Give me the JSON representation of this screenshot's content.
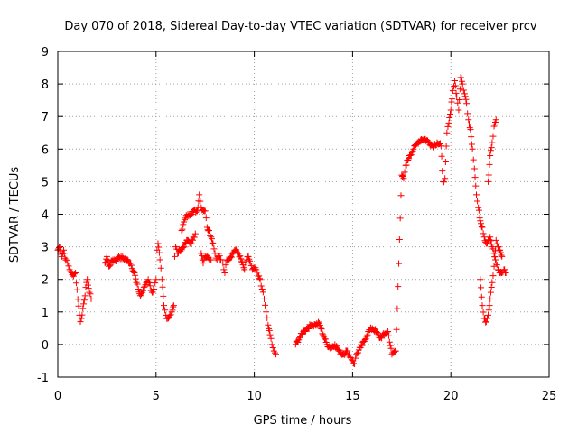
{
  "chart_data": {
    "type": "scatter",
    "title": "Day 070 of 2018, Sidereal Day-to-day VTEC variation (SDTVAR) for receiver prcv",
    "xlabel": "GPS time / hours",
    "ylabel": "SDTVAR / TECUs",
    "xlim": [
      0,
      25
    ],
    "ylim": [
      -1,
      9
    ],
    "xticks": [
      0,
      5,
      10,
      15,
      20,
      25
    ],
    "yticks": [
      -1,
      0,
      1,
      2,
      3,
      4,
      5,
      6,
      7,
      8,
      9
    ],
    "grid": true,
    "marker": "+",
    "color": "#ff0000",
    "series": [
      {
        "name": "SDTVAR",
        "keypoints": [
          [
            0.0,
            2.9
          ],
          [
            0.1,
            3.0
          ],
          [
            0.2,
            2.7
          ],
          [
            0.3,
            2.9
          ],
          [
            0.4,
            2.6
          ],
          [
            0.5,
            2.5
          ],
          [
            0.6,
            2.3
          ],
          [
            0.7,
            2.2
          ],
          [
            0.8,
            2.1
          ],
          [
            0.9,
            2.2
          ],
          [
            1.1,
            0.9
          ],
          [
            1.15,
            0.7
          ],
          [
            1.2,
            0.8
          ],
          [
            1.5,
            2.0
          ],
          [
            1.6,
            1.6
          ],
          [
            1.7,
            1.4
          ],
          [
            2.4,
            2.5
          ],
          [
            2.5,
            2.7
          ],
          [
            2.6,
            2.4
          ],
          [
            2.8,
            2.6
          ],
          [
            3.0,
            2.6
          ],
          [
            3.1,
            2.7
          ],
          [
            3.5,
            2.6
          ],
          [
            3.7,
            2.5
          ],
          [
            3.9,
            2.2
          ],
          [
            4.0,
            1.9
          ],
          [
            4.1,
            1.7
          ],
          [
            4.2,
            1.5
          ],
          [
            4.3,
            1.6
          ],
          [
            4.5,
            1.9
          ],
          [
            4.6,
            2.0
          ],
          [
            4.7,
            1.8
          ],
          [
            4.8,
            1.6
          ],
          [
            4.9,
            1.7
          ],
          [
            5.0,
            2.0
          ],
          [
            5.05,
            2.9
          ],
          [
            5.1,
            3.1
          ],
          [
            5.2,
            2.6
          ],
          [
            5.3,
            2.0
          ],
          [
            5.4,
            1.2
          ],
          [
            5.5,
            0.9
          ],
          [
            5.6,
            0.8
          ],
          [
            5.7,
            0.9
          ],
          [
            5.8,
            1.0
          ],
          [
            5.9,
            1.2
          ],
          [
            5.95,
            2.7
          ],
          [
            6.0,
            3.0
          ],
          [
            6.1,
            2.8
          ],
          [
            6.2,
            2.9
          ],
          [
            6.4,
            3.0
          ],
          [
            6.6,
            3.2
          ],
          [
            6.8,
            3.1
          ],
          [
            6.9,
            3.3
          ],
          [
            7.0,
            3.4
          ],
          [
            6.3,
            3.5
          ],
          [
            6.5,
            3.9
          ],
          [
            6.7,
            4.0
          ],
          [
            6.9,
            4.1
          ],
          [
            7.1,
            4.1
          ],
          [
            7.2,
            4.6
          ],
          [
            7.3,
            4.2
          ],
          [
            7.5,
            4.1
          ],
          [
            7.6,
            3.6
          ],
          [
            7.7,
            3.5
          ],
          [
            7.8,
            3.3
          ],
          [
            7.9,
            3.1
          ],
          [
            8.0,
            2.8
          ],
          [
            8.1,
            2.6
          ],
          [
            8.2,
            2.8
          ],
          [
            8.3,
            2.6
          ],
          [
            7.3,
            2.8
          ],
          [
            7.4,
            2.5
          ],
          [
            7.5,
            2.7
          ],
          [
            7.8,
            2.6
          ],
          [
            8.4,
            2.5
          ],
          [
            8.5,
            2.2
          ],
          [
            8.6,
            2.6
          ],
          [
            8.8,
            2.7
          ],
          [
            9.0,
            2.9
          ],
          [
            9.2,
            2.8
          ],
          [
            9.5,
            2.3
          ],
          [
            9.6,
            2.6
          ],
          [
            9.7,
            2.7
          ],
          [
            9.8,
            2.5
          ],
          [
            9.9,
            2.3
          ],
          [
            10.1,
            2.3
          ],
          [
            10.2,
            2.1
          ],
          [
            10.3,
            2.0
          ],
          [
            10.4,
            1.7
          ],
          [
            10.5,
            1.4
          ],
          [
            10.6,
            1.0
          ],
          [
            10.7,
            0.6
          ],
          [
            10.8,
            0.3
          ],
          [
            10.9,
            0.0
          ],
          [
            11.0,
            -0.2
          ],
          [
            11.1,
            -0.3
          ],
          [
            12.1,
            0.0
          ],
          [
            12.3,
            0.2
          ],
          [
            12.5,
            0.4
          ],
          [
            12.7,
            0.5
          ],
          [
            12.9,
            0.6
          ],
          [
            13.1,
            0.6
          ],
          [
            13.3,
            0.65
          ],
          [
            13.5,
            0.3
          ],
          [
            13.7,
            0.0
          ],
          [
            13.9,
            -0.1
          ],
          [
            14.1,
            0.0
          ],
          [
            14.3,
            -0.2
          ],
          [
            14.5,
            -0.3
          ],
          [
            14.7,
            -0.2
          ],
          [
            14.9,
            -0.4
          ],
          [
            15.0,
            -0.5
          ],
          [
            15.1,
            -0.6
          ],
          [
            15.2,
            -0.3
          ],
          [
            15.4,
            -0.1
          ],
          [
            15.6,
            0.1
          ],
          [
            15.8,
            0.4
          ],
          [
            16.0,
            0.5
          ],
          [
            16.2,
            0.4
          ],
          [
            16.4,
            0.2
          ],
          [
            16.6,
            0.3
          ],
          [
            16.8,
            0.4
          ],
          [
            17.0,
            -0.3
          ],
          [
            17.2,
            -0.2
          ],
          [
            17.5,
            5.2
          ],
          [
            17.6,
            5.1
          ],
          [
            17.7,
            5.5
          ],
          [
            17.9,
            5.8
          ],
          [
            18.1,
            6.0
          ],
          [
            18.3,
            6.2
          ],
          [
            18.5,
            6.3
          ],
          [
            18.7,
            6.3
          ],
          [
            18.9,
            6.2
          ],
          [
            19.1,
            6.1
          ],
          [
            19.3,
            6.2
          ],
          [
            19.5,
            6.1
          ],
          [
            19.6,
            5.0
          ],
          [
            19.7,
            5.1
          ],
          [
            19.8,
            6.5
          ],
          [
            19.9,
            6.8
          ],
          [
            20.0,
            7.2
          ],
          [
            20.1,
            7.8
          ],
          [
            20.2,
            8.1
          ],
          [
            20.3,
            7.6
          ],
          [
            20.4,
            7.2
          ],
          [
            20.5,
            8.2
          ],
          [
            20.6,
            8.0
          ],
          [
            20.7,
            7.7
          ],
          [
            20.8,
            7.4
          ],
          [
            20.9,
            6.9
          ],
          [
            21.0,
            6.6
          ],
          [
            21.1,
            6.0
          ],
          [
            21.2,
            5.4
          ],
          [
            21.3,
            4.6
          ],
          [
            21.4,
            4.2
          ],
          [
            21.5,
            3.8
          ],
          [
            21.6,
            3.6
          ],
          [
            21.7,
            3.3
          ],
          [
            21.8,
            3.1
          ],
          [
            21.9,
            3.2
          ],
          [
            22.0,
            3.3
          ],
          [
            22.1,
            3.0
          ],
          [
            22.2,
            2.8
          ],
          [
            22.3,
            2.5
          ],
          [
            22.4,
            2.3
          ],
          [
            22.5,
            2.2
          ],
          [
            22.6,
            2.2
          ],
          [
            22.7,
            2.3
          ],
          [
            22.8,
            2.2
          ],
          [
            21.5,
            2.0
          ],
          [
            21.6,
            1.2
          ],
          [
            21.7,
            0.8
          ],
          [
            21.8,
            0.7
          ],
          [
            21.9,
            0.9
          ],
          [
            22.0,
            1.4
          ],
          [
            22.1,
            1.9
          ],
          [
            22.2,
            2.4
          ],
          [
            22.3,
            3.2
          ],
          [
            22.4,
            3.0
          ],
          [
            22.5,
            2.9
          ],
          [
            22.6,
            2.7
          ],
          [
            21.9,
            5.0
          ],
          [
            22.0,
            5.8
          ],
          [
            22.1,
            6.2
          ],
          [
            22.2,
            6.7
          ],
          [
            22.3,
            6.9
          ]
        ]
      }
    ]
  }
}
